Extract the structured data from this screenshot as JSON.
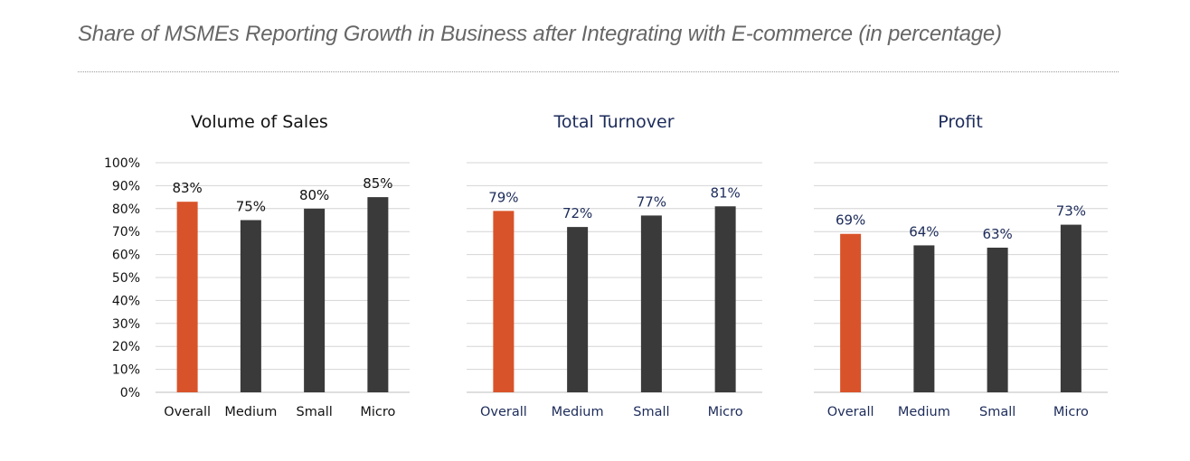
{
  "page_title": "Share of MSMEs Reporting Growth in Business after Integrating with E-commerce (in percentage)",
  "colors": {
    "highlight": "#d9532a",
    "default": "#3a3a3a",
    "navy_text": "#1c2b5a",
    "black_text": "#111111",
    "grid": "#d4d4d4"
  },
  "chart_data": [
    {
      "type": "bar",
      "title": "Volume of Sales",
      "categories": [
        "Overall",
        "Medium",
        "Small",
        "Micro"
      ],
      "values": [
        83,
        75,
        80,
        85
      ],
      "data_labels": [
        "83%",
        "75%",
        "80%",
        "85%"
      ],
      "highlight_index": 0,
      "text_color": "#111111",
      "ylim": [
        0,
        100
      ],
      "y_ticks": [
        0,
        10,
        20,
        30,
        40,
        50,
        60,
        70,
        80,
        90,
        100
      ],
      "y_tick_labels": [
        "0%",
        "10%",
        "20%",
        "30%",
        "40%",
        "50%",
        "60%",
        "70%",
        "80%",
        "90%",
        "100%"
      ],
      "show_y_axis": true,
      "grid": true
    },
    {
      "type": "bar",
      "title": "Total Turnover",
      "categories": [
        "Overall",
        "Medium",
        "Small",
        "Micro"
      ],
      "values": [
        79,
        72,
        77,
        81
      ],
      "data_labels": [
        "79%",
        "72%",
        "77%",
        "81%"
      ],
      "highlight_index": 0,
      "text_color": "#1c2b5a",
      "ylim": [
        0,
        100
      ],
      "y_ticks": [
        0,
        10,
        20,
        30,
        40,
        50,
        60,
        70,
        80,
        90,
        100
      ],
      "show_y_axis": false,
      "grid": true
    },
    {
      "type": "bar",
      "title": "Profit",
      "categories": [
        "Overall",
        "Medium",
        "Small",
        "Micro"
      ],
      "values": [
        69,
        64,
        63,
        73
      ],
      "data_labels": [
        "69%",
        "64%",
        "63%",
        "73%"
      ],
      "highlight_index": 0,
      "text_color": "#1c2b5a",
      "ylim": [
        0,
        100
      ],
      "y_ticks": [
        0,
        10,
        20,
        30,
        40,
        50,
        60,
        70,
        80,
        90,
        100
      ],
      "show_y_axis": false,
      "grid": true
    }
  ]
}
